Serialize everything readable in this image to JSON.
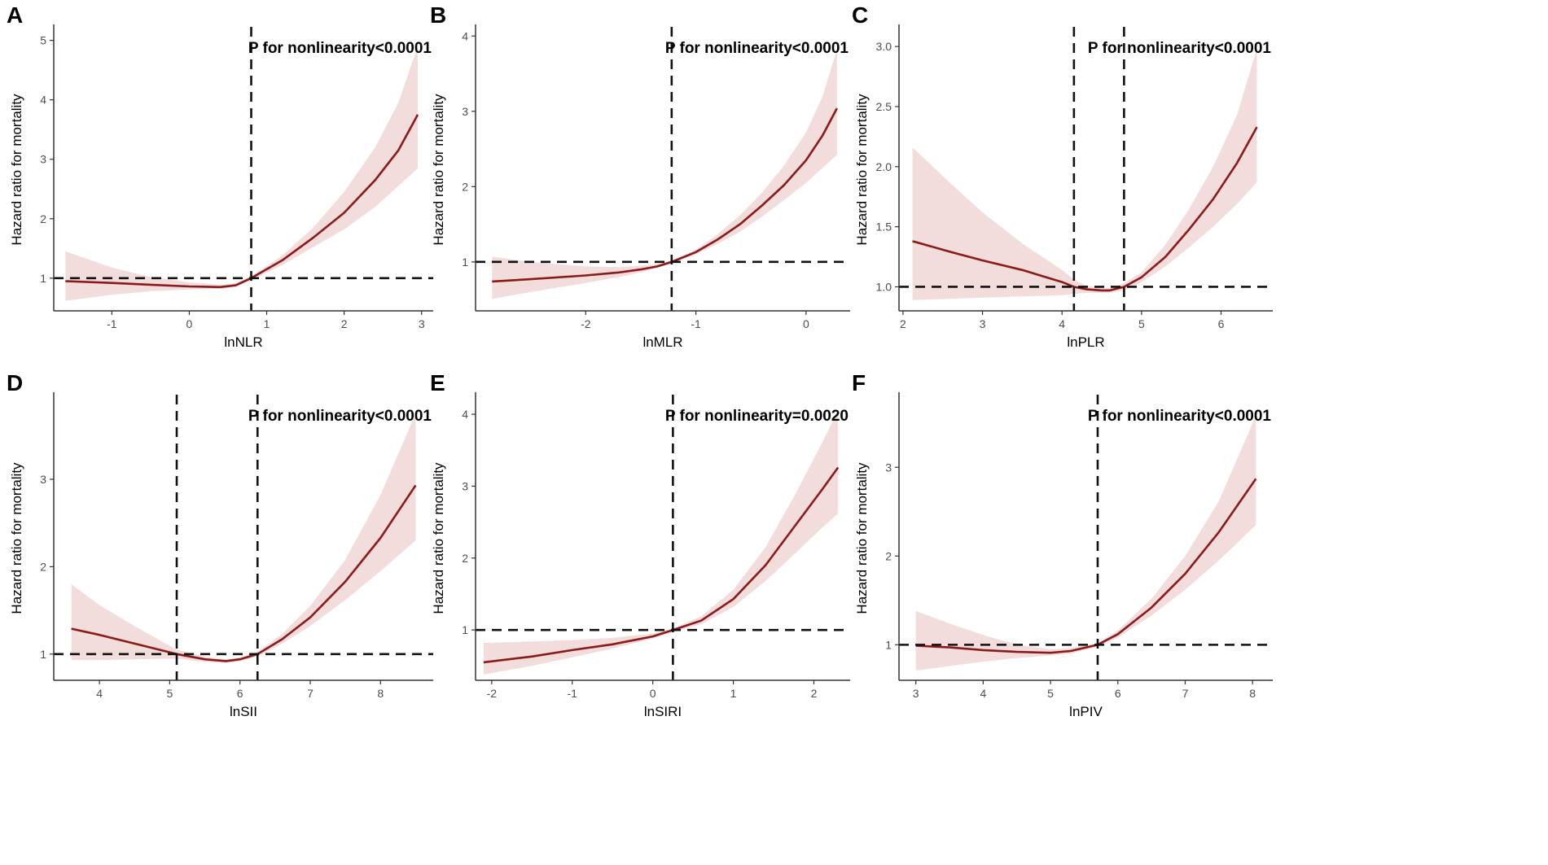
{
  "figure": {
    "ylabel_common": "Hazard ratio for mortality"
  },
  "chart_data": [
    {
      "type": "line",
      "panel": "A",
      "xlabel": "lnNLR",
      "ylabel": "Hazard ratio for mortality",
      "annotation": "P for nonlinearity<0.0001",
      "xlim": [
        -1.75,
        3.15
      ],
      "ylim": [
        0.45,
        5.2
      ],
      "xticks": [
        -1,
        0,
        1,
        2,
        3
      ],
      "yticks": [
        1,
        2,
        3,
        4,
        5
      ],
      "hline": 1,
      "vlines": [
        0.8
      ],
      "series": [
        {
          "name": "Hazard ratio",
          "x": [
            -1.6,
            -1.0,
            -0.5,
            0.0,
            0.4,
            0.6,
            0.8,
            1.2,
            1.6,
            2.0,
            2.4,
            2.7,
            2.95
          ],
          "values": [
            0.95,
            0.92,
            0.89,
            0.86,
            0.85,
            0.88,
            1.0,
            1.3,
            1.68,
            2.1,
            2.65,
            3.15,
            3.75
          ]
        },
        {
          "name": "95% CI lower",
          "x": [
            -1.6,
            -1.0,
            -0.5,
            0.0,
            0.4,
            0.6,
            0.8,
            1.2,
            1.6,
            2.0,
            2.4,
            2.7,
            2.95
          ],
          "values": [
            0.62,
            0.72,
            0.78,
            0.81,
            0.82,
            0.85,
            0.97,
            1.22,
            1.52,
            1.82,
            2.2,
            2.55,
            2.85
          ]
        },
        {
          "name": "95% CI upper",
          "x": [
            -1.6,
            -1.0,
            -0.5,
            0.0,
            0.4,
            0.6,
            0.8,
            1.2,
            1.6,
            2.0,
            2.4,
            2.7,
            2.95
          ],
          "values": [
            1.45,
            1.18,
            1.02,
            0.93,
            0.89,
            0.92,
            1.03,
            1.38,
            1.85,
            2.45,
            3.2,
            3.95,
            4.9
          ]
        }
      ]
    },
    {
      "type": "line",
      "panel": "B",
      "xlabel": "lnMLR",
      "ylabel": "Hazard ratio for mortality",
      "annotation": "P for nonlinearity<0.0001",
      "xlim": [
        -3.0,
        0.4
      ],
      "ylim": [
        0.35,
        4.1
      ],
      "xticks": [
        -2,
        -1,
        0
      ],
      "yticks": [
        1,
        2,
        3,
        4
      ],
      "hline": 1,
      "vlines": [
        -1.22
      ],
      "series": [
        {
          "name": "Hazard ratio",
          "x": [
            -2.85,
            -2.5,
            -2.0,
            -1.7,
            -1.5,
            -1.35,
            -1.22,
            -1.0,
            -0.8,
            -0.6,
            -0.4,
            -0.2,
            0.0,
            0.15,
            0.28
          ],
          "values": [
            0.74,
            0.77,
            0.82,
            0.86,
            0.9,
            0.94,
            1.0,
            1.13,
            1.3,
            1.5,
            1.75,
            2.02,
            2.35,
            2.68,
            3.04
          ]
        },
        {
          "name": "95% CI lower",
          "x": [
            -2.85,
            -2.5,
            -2.0,
            -1.7,
            -1.5,
            -1.35,
            -1.22,
            -1.0,
            -0.8,
            -0.6,
            -0.4,
            -0.2,
            0.0,
            0.15,
            0.28
          ],
          "values": [
            0.51,
            0.6,
            0.72,
            0.8,
            0.86,
            0.92,
            0.98,
            1.1,
            1.24,
            1.4,
            1.6,
            1.82,
            2.05,
            2.25,
            2.42
          ]
        },
        {
          "name": "95% CI upper",
          "x": [
            -2.85,
            -2.5,
            -2.0,
            -1.7,
            -1.5,
            -1.35,
            -1.22,
            -1.0,
            -0.8,
            -0.6,
            -0.4,
            -0.2,
            0.0,
            0.15,
            0.28
          ],
          "values": [
            1.07,
            1.0,
            0.94,
            0.93,
            0.95,
            0.97,
            1.02,
            1.16,
            1.37,
            1.62,
            1.92,
            2.28,
            2.72,
            3.2,
            3.82
          ]
        }
      ]
    },
    {
      "type": "line",
      "panel": "C",
      "xlabel": "lnPLR",
      "ylabel": "Hazard ratio for mortality",
      "annotation": "P for nonlinearity<0.0001",
      "xlim": [
        1.95,
        6.65
      ],
      "ylim": [
        0.8,
        3.15
      ],
      "xticks": [
        2,
        3,
        4,
        5,
        6
      ],
      "yticks": [
        1.0,
        1.5,
        2.0,
        2.5,
        3.0
      ],
      "ytick_labels": [
        "1.0",
        "1.5",
        "2.0",
        "2.5",
        "3.0"
      ],
      "hline": 1,
      "vlines": [
        4.15,
        4.78
      ],
      "series": [
        {
          "name": "Hazard ratio",
          "x": [
            2.12,
            2.6,
            3.0,
            3.5,
            4.0,
            4.15,
            4.3,
            4.5,
            4.6,
            4.78,
            5.0,
            5.3,
            5.6,
            5.9,
            6.2,
            6.45
          ],
          "values": [
            1.38,
            1.29,
            1.22,
            1.14,
            1.04,
            1.0,
            0.98,
            0.97,
            0.97,
            1.0,
            1.08,
            1.25,
            1.48,
            1.73,
            2.03,
            2.33
          ]
        },
        {
          "name": "95% CI lower",
          "x": [
            2.12,
            2.6,
            3.0,
            3.5,
            4.0,
            4.15,
            4.3,
            4.5,
            4.6,
            4.78,
            5.0,
            5.3,
            5.6,
            5.9,
            6.2,
            6.45
          ],
          "values": [
            0.89,
            0.9,
            0.91,
            0.92,
            0.93,
            0.94,
            0.95,
            0.95,
            0.95,
            0.97,
            1.04,
            1.17,
            1.33,
            1.5,
            1.69,
            1.87
          ]
        },
        {
          "name": "95% CI upper",
          "x": [
            2.12,
            2.6,
            3.0,
            3.5,
            4.0,
            4.15,
            4.3,
            4.5,
            4.6,
            4.78,
            5.0,
            5.3,
            5.6,
            5.9,
            6.2,
            6.45
          ],
          "values": [
            2.16,
            1.86,
            1.62,
            1.36,
            1.14,
            1.06,
            1.01,
            0.99,
            0.99,
            1.03,
            1.12,
            1.35,
            1.65,
            2.0,
            2.43,
            2.98
          ]
        }
      ]
    },
    {
      "type": "line",
      "panel": "D",
      "xlabel": "lnSII",
      "ylabel": "Hazard ratio for mortality",
      "annotation": "P for nonlinearity<0.0001",
      "xlim": [
        3.35,
        8.75
      ],
      "ylim": [
        0.7,
        3.95
      ],
      "xticks": [
        4,
        5,
        6,
        7,
        8
      ],
      "yticks": [
        1,
        2,
        3
      ],
      "hline": 1,
      "vlines": [
        5.1,
        6.25
      ],
      "series": [
        {
          "name": "Hazard ratio",
          "x": [
            3.6,
            4.0,
            4.5,
            5.1,
            5.5,
            5.8,
            6.0,
            6.25,
            6.6,
            7.0,
            7.5,
            8.0,
            8.5
          ],
          "values": [
            1.29,
            1.22,
            1.12,
            1.0,
            0.94,
            0.92,
            0.94,
            1.0,
            1.17,
            1.42,
            1.83,
            2.33,
            2.93
          ]
        },
        {
          "name": "95% CI lower",
          "x": [
            3.6,
            4.0,
            4.5,
            5.1,
            5.5,
            5.8,
            6.0,
            6.25,
            6.6,
            7.0,
            7.5,
            8.0,
            8.5
          ],
          "values": [
            0.93,
            0.93,
            0.94,
            0.95,
            0.91,
            0.9,
            0.92,
            0.97,
            1.12,
            1.32,
            1.62,
            1.95,
            2.3
          ]
        },
        {
          "name": "95% CI upper",
          "x": [
            3.6,
            4.0,
            4.5,
            5.1,
            5.5,
            5.8,
            6.0,
            6.25,
            6.6,
            7.0,
            7.5,
            8.0,
            8.5
          ],
          "values": [
            1.8,
            1.56,
            1.32,
            1.05,
            0.97,
            0.94,
            0.96,
            1.03,
            1.23,
            1.55,
            2.08,
            2.82,
            3.75
          ]
        }
      ]
    },
    {
      "type": "line",
      "panel": "E",
      "xlabel": "lnSIRI",
      "ylabel": "Hazard ratio for mortality",
      "annotation": "P for nonlinearity=0.0020",
      "xlim": [
        -2.2,
        2.45
      ],
      "ylim": [
        0.3,
        4.25
      ],
      "xticks": [
        -2,
        -1,
        0,
        1,
        2
      ],
      "yticks": [
        1,
        2,
        3,
        4
      ],
      "hline": 1,
      "vlines": [
        0.25
      ],
      "series": [
        {
          "name": "Hazard ratio",
          "x": [
            -2.1,
            -1.5,
            -1.0,
            -0.5,
            0.0,
            0.25,
            0.6,
            1.0,
            1.4,
            1.8,
            2.1,
            2.3
          ],
          "values": [
            0.55,
            0.63,
            0.72,
            0.8,
            0.91,
            1.0,
            1.13,
            1.43,
            1.9,
            2.5,
            2.95,
            3.26
          ]
        },
        {
          "name": "95% CI lower",
          "x": [
            -2.1,
            -1.5,
            -1.0,
            -0.5,
            0.0,
            0.25,
            0.6,
            1.0,
            1.4,
            1.8,
            2.1,
            2.3
          ],
          "values": [
            0.38,
            0.5,
            0.62,
            0.74,
            0.88,
            0.97,
            1.08,
            1.32,
            1.68,
            2.1,
            2.42,
            2.62
          ]
        },
        {
          "name": "95% CI upper",
          "x": [
            -2.1,
            -1.5,
            -1.0,
            -0.5,
            0.0,
            0.25,
            0.6,
            1.0,
            1.4,
            1.8,
            2.1,
            2.3
          ],
          "values": [
            0.82,
            0.84,
            0.86,
            0.89,
            0.95,
            1.02,
            1.19,
            1.56,
            2.15,
            2.95,
            3.6,
            4.05
          ]
        }
      ]
    },
    {
      "type": "line",
      "panel": "F",
      "xlabel": "lnPIV",
      "ylabel": "Hazard ratio for mortality",
      "annotation": "P for nonlinearity<0.0001",
      "xlim": [
        2.75,
        8.3
      ],
      "ylim": [
        0.6,
        3.8
      ],
      "xticks": [
        3,
        4,
        5,
        6,
        7,
        8
      ],
      "yticks": [
        1,
        2,
        3
      ],
      "hline": 1,
      "vlines": [
        5.7
      ],
      "series": [
        {
          "name": "Hazard ratio",
          "x": [
            3.0,
            3.5,
            4.0,
            4.5,
            5.0,
            5.3,
            5.7,
            6.0,
            6.5,
            7.0,
            7.5,
            8.05
          ],
          "values": [
            0.99,
            0.97,
            0.94,
            0.92,
            0.91,
            0.93,
            1.0,
            1.12,
            1.42,
            1.8,
            2.27,
            2.87
          ]
        },
        {
          "name": "95% CI lower",
          "x": [
            3.0,
            3.5,
            4.0,
            4.5,
            5.0,
            5.3,
            5.7,
            6.0,
            6.5,
            7.0,
            7.5,
            8.05
          ],
          "values": [
            0.71,
            0.76,
            0.81,
            0.85,
            0.88,
            0.9,
            0.98,
            1.08,
            1.33,
            1.62,
            1.95,
            2.35
          ]
        },
        {
          "name": "95% CI upper",
          "x": [
            3.0,
            3.5,
            4.0,
            4.5,
            5.0,
            5.3,
            5.7,
            6.0,
            6.5,
            7.0,
            7.5,
            8.05
          ],
          "values": [
            1.38,
            1.24,
            1.11,
            1.0,
            0.95,
            0.96,
            1.02,
            1.16,
            1.52,
            2.0,
            2.62,
            3.58
          ]
        }
      ]
    }
  ]
}
